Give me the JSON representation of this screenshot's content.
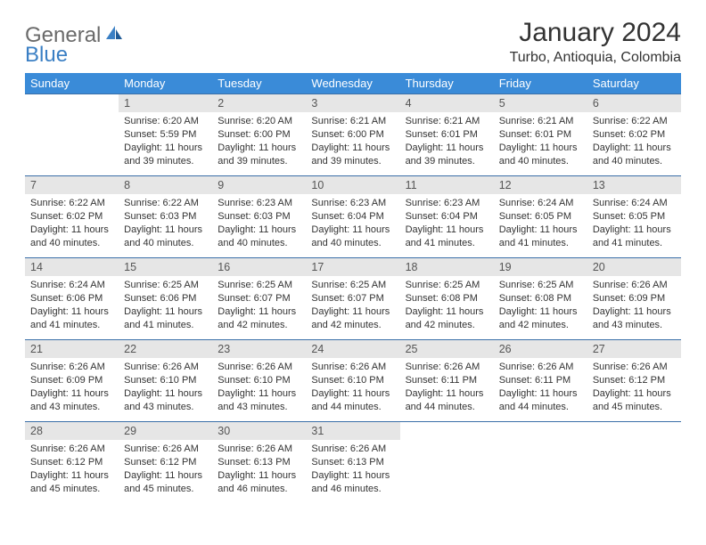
{
  "logo": {
    "general": "General",
    "blue": "Blue"
  },
  "title": "January 2024",
  "location": "Turbo, Antioquia, Colombia",
  "colors": {
    "header_bg": "#3a8bd8",
    "header_text": "#ffffff",
    "daynum_bg": "#e6e6e6",
    "daynum_border": "#3a6fa8",
    "logo_general": "#6a6a6a",
    "logo_blue": "#3a7fc4"
  },
  "weekdays": [
    "Sunday",
    "Monday",
    "Tuesday",
    "Wednesday",
    "Thursday",
    "Friday",
    "Saturday"
  ],
  "weeks": [
    [
      null,
      {
        "n": "1",
        "sr": "Sunrise: 6:20 AM",
        "ss": "Sunset: 5:59 PM",
        "dl": "Daylight: 11 hours and 39 minutes."
      },
      {
        "n": "2",
        "sr": "Sunrise: 6:20 AM",
        "ss": "Sunset: 6:00 PM",
        "dl": "Daylight: 11 hours and 39 minutes."
      },
      {
        "n": "3",
        "sr": "Sunrise: 6:21 AM",
        "ss": "Sunset: 6:00 PM",
        "dl": "Daylight: 11 hours and 39 minutes."
      },
      {
        "n": "4",
        "sr": "Sunrise: 6:21 AM",
        "ss": "Sunset: 6:01 PM",
        "dl": "Daylight: 11 hours and 39 minutes."
      },
      {
        "n": "5",
        "sr": "Sunrise: 6:21 AM",
        "ss": "Sunset: 6:01 PM",
        "dl": "Daylight: 11 hours and 40 minutes."
      },
      {
        "n": "6",
        "sr": "Sunrise: 6:22 AM",
        "ss": "Sunset: 6:02 PM",
        "dl": "Daylight: 11 hours and 40 minutes."
      }
    ],
    [
      {
        "n": "7",
        "sr": "Sunrise: 6:22 AM",
        "ss": "Sunset: 6:02 PM",
        "dl": "Daylight: 11 hours and 40 minutes."
      },
      {
        "n": "8",
        "sr": "Sunrise: 6:22 AM",
        "ss": "Sunset: 6:03 PM",
        "dl": "Daylight: 11 hours and 40 minutes."
      },
      {
        "n": "9",
        "sr": "Sunrise: 6:23 AM",
        "ss": "Sunset: 6:03 PM",
        "dl": "Daylight: 11 hours and 40 minutes."
      },
      {
        "n": "10",
        "sr": "Sunrise: 6:23 AM",
        "ss": "Sunset: 6:04 PM",
        "dl": "Daylight: 11 hours and 40 minutes."
      },
      {
        "n": "11",
        "sr": "Sunrise: 6:23 AM",
        "ss": "Sunset: 6:04 PM",
        "dl": "Daylight: 11 hours and 41 minutes."
      },
      {
        "n": "12",
        "sr": "Sunrise: 6:24 AM",
        "ss": "Sunset: 6:05 PM",
        "dl": "Daylight: 11 hours and 41 minutes."
      },
      {
        "n": "13",
        "sr": "Sunrise: 6:24 AM",
        "ss": "Sunset: 6:05 PM",
        "dl": "Daylight: 11 hours and 41 minutes."
      }
    ],
    [
      {
        "n": "14",
        "sr": "Sunrise: 6:24 AM",
        "ss": "Sunset: 6:06 PM",
        "dl": "Daylight: 11 hours and 41 minutes."
      },
      {
        "n": "15",
        "sr": "Sunrise: 6:25 AM",
        "ss": "Sunset: 6:06 PM",
        "dl": "Daylight: 11 hours and 41 minutes."
      },
      {
        "n": "16",
        "sr": "Sunrise: 6:25 AM",
        "ss": "Sunset: 6:07 PM",
        "dl": "Daylight: 11 hours and 42 minutes."
      },
      {
        "n": "17",
        "sr": "Sunrise: 6:25 AM",
        "ss": "Sunset: 6:07 PM",
        "dl": "Daylight: 11 hours and 42 minutes."
      },
      {
        "n": "18",
        "sr": "Sunrise: 6:25 AM",
        "ss": "Sunset: 6:08 PM",
        "dl": "Daylight: 11 hours and 42 minutes."
      },
      {
        "n": "19",
        "sr": "Sunrise: 6:25 AM",
        "ss": "Sunset: 6:08 PM",
        "dl": "Daylight: 11 hours and 42 minutes."
      },
      {
        "n": "20",
        "sr": "Sunrise: 6:26 AM",
        "ss": "Sunset: 6:09 PM",
        "dl": "Daylight: 11 hours and 43 minutes."
      }
    ],
    [
      {
        "n": "21",
        "sr": "Sunrise: 6:26 AM",
        "ss": "Sunset: 6:09 PM",
        "dl": "Daylight: 11 hours and 43 minutes."
      },
      {
        "n": "22",
        "sr": "Sunrise: 6:26 AM",
        "ss": "Sunset: 6:10 PM",
        "dl": "Daylight: 11 hours and 43 minutes."
      },
      {
        "n": "23",
        "sr": "Sunrise: 6:26 AM",
        "ss": "Sunset: 6:10 PM",
        "dl": "Daylight: 11 hours and 43 minutes."
      },
      {
        "n": "24",
        "sr": "Sunrise: 6:26 AM",
        "ss": "Sunset: 6:10 PM",
        "dl": "Daylight: 11 hours and 44 minutes."
      },
      {
        "n": "25",
        "sr": "Sunrise: 6:26 AM",
        "ss": "Sunset: 6:11 PM",
        "dl": "Daylight: 11 hours and 44 minutes."
      },
      {
        "n": "26",
        "sr": "Sunrise: 6:26 AM",
        "ss": "Sunset: 6:11 PM",
        "dl": "Daylight: 11 hours and 44 minutes."
      },
      {
        "n": "27",
        "sr": "Sunrise: 6:26 AM",
        "ss": "Sunset: 6:12 PM",
        "dl": "Daylight: 11 hours and 45 minutes."
      }
    ],
    [
      {
        "n": "28",
        "sr": "Sunrise: 6:26 AM",
        "ss": "Sunset: 6:12 PM",
        "dl": "Daylight: 11 hours and 45 minutes."
      },
      {
        "n": "29",
        "sr": "Sunrise: 6:26 AM",
        "ss": "Sunset: 6:12 PM",
        "dl": "Daylight: 11 hours and 45 minutes."
      },
      {
        "n": "30",
        "sr": "Sunrise: 6:26 AM",
        "ss": "Sunset: 6:13 PM",
        "dl": "Daylight: 11 hours and 46 minutes."
      },
      {
        "n": "31",
        "sr": "Sunrise: 6:26 AM",
        "ss": "Sunset: 6:13 PM",
        "dl": "Daylight: 11 hours and 46 minutes."
      },
      null,
      null,
      null
    ]
  ]
}
